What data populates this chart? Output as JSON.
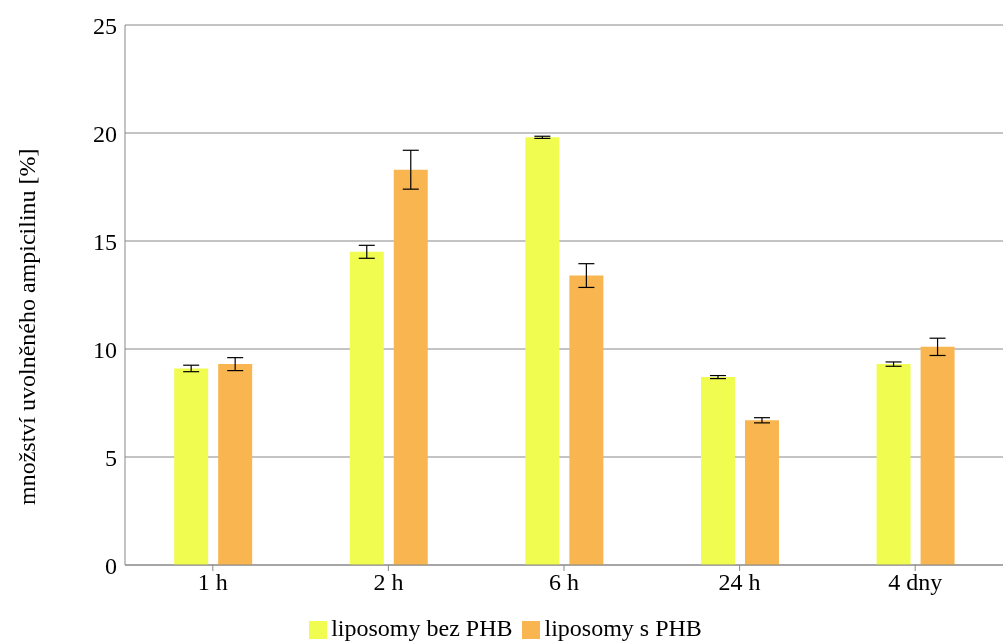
{
  "chart_data": {
    "type": "bar",
    "ylabel": "množství uvolněného ampicilinu [%]",
    "categories": [
      "1 h",
      "2 h",
      "6 h",
      "24 h",
      "4 dny"
    ],
    "series": [
      {
        "name": "liposomy bez PHB",
        "color": "#f0fc50",
        "values": [
          9.1,
          14.5,
          19.8,
          8.7,
          9.3
        ],
        "errors": [
          0.15,
          0.3,
          0.05,
          0.07,
          0.1
        ]
      },
      {
        "name": "liposomy s PHB",
        "color": "#f9b54f",
        "values": [
          9.3,
          18.3,
          13.4,
          6.7,
          10.1
        ],
        "errors": [
          0.3,
          0.9,
          0.55,
          0.12,
          0.4
        ]
      }
    ],
    "ylim": [
      0,
      25
    ],
    "yticks": [
      0,
      5,
      10,
      15,
      20,
      25
    ],
    "grid": "y",
    "legend": "bottom"
  }
}
